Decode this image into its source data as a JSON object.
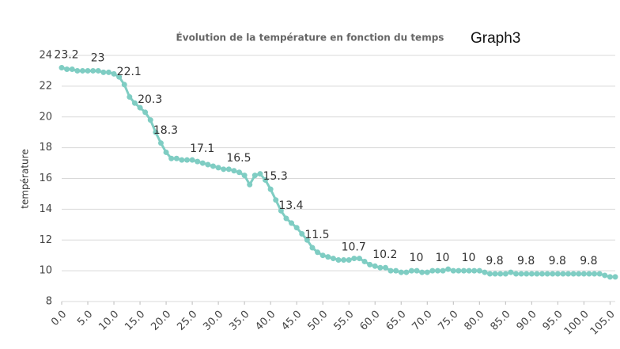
{
  "chart_data": {
    "type": "line",
    "title": "Évolution de la  température en fonction du temps",
    "annotation": "Graph3",
    "y_label": "température",
    "x": [
      0,
      1,
      2,
      3,
      4,
      5,
      6,
      7,
      8,
      9,
      10,
      11,
      12,
      13,
      14,
      15,
      16,
      17,
      18,
      19,
      20,
      21,
      22,
      23,
      24,
      25,
      26,
      27,
      28,
      29,
      30,
      31,
      32,
      33,
      34,
      35,
      36,
      37,
      38,
      39,
      40,
      41,
      42,
      43,
      44,
      45,
      46,
      47,
      48,
      49,
      50,
      51,
      52,
      53,
      54,
      55,
      56,
      57,
      58,
      59,
      60,
      61,
      62,
      63,
      64,
      65,
      66,
      67,
      68,
      69,
      70,
      71,
      72,
      73,
      74,
      75,
      76,
      77,
      78,
      79,
      80,
      81,
      82,
      83,
      84,
      85,
      86,
      87,
      88,
      89,
      90,
      91,
      92,
      93,
      94,
      95,
      96,
      97,
      98,
      99,
      100,
      101,
      102,
      103,
      104,
      105,
      106
    ],
    "series": [
      {
        "name": "température",
        "color": "#7fcdc3",
        "values": [
          23.2,
          23.1,
          23.1,
          23.0,
          23.0,
          23.0,
          23,
          23.0,
          22.9,
          22.9,
          22.8,
          22.6,
          22.1,
          21.3,
          20.9,
          20.6,
          20.3,
          19.8,
          19.0,
          18.3,
          17.7,
          17.3,
          17.3,
          17.2,
          17.2,
          17.2,
          17.1,
          17.0,
          16.9,
          16.8,
          16.7,
          16.6,
          16.6,
          16.5,
          16.4,
          16.2,
          15.6,
          16.2,
          16.3,
          15.9,
          15.3,
          14.6,
          13.9,
          13.4,
          13.1,
          12.8,
          12.4,
          12.0,
          11.5,
          11.2,
          11.0,
          10.9,
          10.8,
          10.7,
          10.7,
          10.7,
          10.8,
          10.8,
          10.6,
          10.4,
          10.3,
          10.2,
          10.2,
          10.0,
          10.0,
          9.9,
          9.9,
          10,
          10.0,
          9.9,
          9.9,
          10.0,
          10,
          10.0,
          10.1,
          10.0,
          10.0,
          10,
          10.0,
          10.0,
          10.0,
          9.9,
          9.8,
          9.8,
          9.8,
          9.8,
          9.9,
          9.8,
          9.8,
          9.8,
          9.8,
          9.8,
          9.8,
          9.8,
          9.8,
          9.8,
          9.8,
          9.8,
          9.8,
          9.8,
          9.8,
          9.8,
          9.8,
          9.8,
          9.7,
          9.6,
          9.6
        ],
        "value_labels": [
          "23.2",
          null,
          null,
          null,
          null,
          null,
          "23",
          null,
          null,
          null,
          null,
          null,
          "22.1",
          null,
          null,
          null,
          "20.3",
          null,
          null,
          "18.3",
          null,
          null,
          null,
          null,
          null,
          null,
          "17.1",
          null,
          null,
          null,
          null,
          null,
          null,
          "16.5",
          null,
          null,
          null,
          null,
          null,
          null,
          "15.3",
          null,
          null,
          "13.4",
          null,
          null,
          null,
          null,
          "11.5",
          null,
          null,
          null,
          null,
          null,
          null,
          "10.7",
          null,
          null,
          null,
          null,
          null,
          "10.2",
          null,
          null,
          null,
          null,
          null,
          "10",
          null,
          null,
          null,
          null,
          "10",
          null,
          null,
          null,
          null,
          "10",
          null,
          null,
          null,
          null,
          "9.8",
          null,
          null,
          null,
          null,
          null,
          "9.8",
          null,
          null,
          null,
          null,
          null,
          "9.8",
          null,
          null,
          null,
          null,
          null,
          "9.8",
          null,
          null,
          null,
          null,
          null,
          null
        ]
      }
    ],
    "xlim": [
      0,
      106
    ],
    "xticks": [
      {
        "value": 0,
        "label": "0.0"
      },
      {
        "value": 5,
        "label": "5.0"
      },
      {
        "value": 10,
        "label": "10.0"
      },
      {
        "value": 15,
        "label": "15.0"
      },
      {
        "value": 20,
        "label": "20.0"
      },
      {
        "value": 25,
        "label": "25.0"
      },
      {
        "value": 30,
        "label": "30.0"
      },
      {
        "value": 35,
        "label": "35.0"
      },
      {
        "value": 40,
        "label": "40.0"
      },
      {
        "value": 45,
        "label": "45.0"
      },
      {
        "value": 50,
        "label": "50.0"
      },
      {
        "value": 55,
        "label": "55.0"
      },
      {
        "value": 60,
        "label": "60.0"
      },
      {
        "value": 65,
        "label": "65.0"
      },
      {
        "value": 70,
        "label": "70.0"
      },
      {
        "value": 75,
        "label": "75.0"
      },
      {
        "value": 80,
        "label": "80.0"
      },
      {
        "value": 85,
        "label": "85.0"
      },
      {
        "value": 90,
        "label": "90.0"
      },
      {
        "value": 95,
        "label": "95.0"
      },
      {
        "value": 100,
        "label": "100.0"
      },
      {
        "value": 105,
        "label": "105.0"
      }
    ],
    "ylim": [
      8,
      24
    ],
    "yticks": [
      8,
      10,
      12,
      14,
      16,
      18,
      20,
      22,
      24
    ],
    "grid": true
  }
}
